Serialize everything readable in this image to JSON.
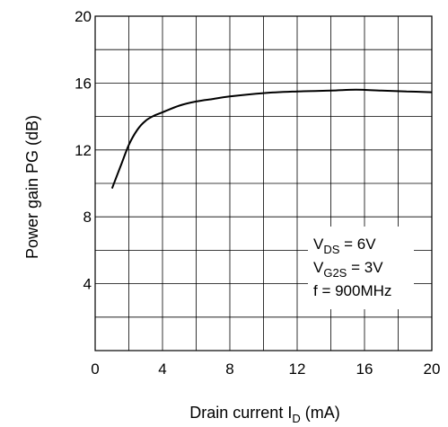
{
  "chart_data": {
    "type": "line",
    "title": "",
    "xlabel": "Drain current I",
    "xlabel_subscript": "D",
    "xlabel_unit": "(mA)",
    "ylabel": "Power gain PG (dB)",
    "xlim": [
      0,
      20
    ],
    "ylim": [
      0,
      20
    ],
    "x_ticks": [
      0,
      4,
      8,
      12,
      16,
      20
    ],
    "y_ticks": [
      4,
      8,
      12,
      16,
      20
    ],
    "grid": true,
    "legend": "none",
    "line_color": "#000000",
    "annotations": [
      {
        "main": "V",
        "sub": "DS",
        "rest": " = 6V"
      },
      {
        "main": "V",
        "sub": "G2S",
        "rest": " = 3V"
      },
      {
        "main": "f = 900MHz",
        "sub": "",
        "rest": ""
      }
    ],
    "series": [
      {
        "x": [
          1.0,
          1.5,
          2.0,
          2.5,
          3.0,
          3.5,
          4.0,
          5.0,
          6.0,
          7.0,
          8.0,
          10.0,
          12.0,
          14.0,
          15.5,
          17.0,
          18.5,
          20.0
        ],
        "y": [
          9.7,
          11.0,
          12.3,
          13.2,
          13.75,
          14.05,
          14.25,
          14.65,
          14.9,
          15.05,
          15.2,
          15.4,
          15.5,
          15.55,
          15.6,
          15.55,
          15.5,
          15.45
        ]
      }
    ]
  }
}
